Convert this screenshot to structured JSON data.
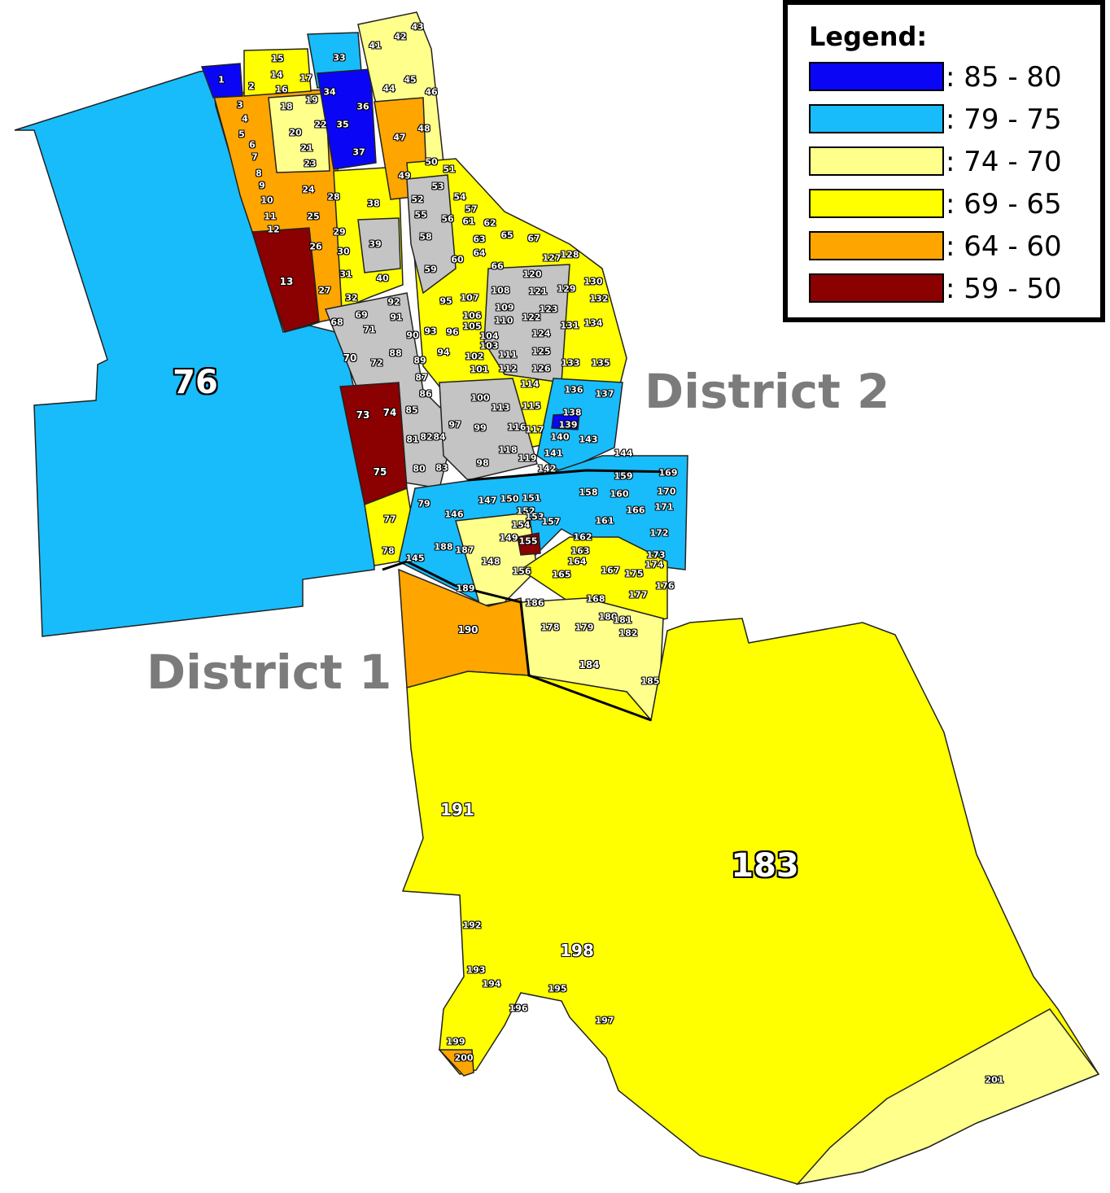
{
  "colors": {
    "c85_80": "#0a06f5",
    "c79_75": "#18bcfa",
    "c74_70": "#ffff8c",
    "c69_65": "#ffff00",
    "c64_60": "#ffa500",
    "c59_50": "#8b0000",
    "no_data": "#c4c4c4"
  },
  "legend": {
    "title": "Legend:",
    "items": [
      {
        "label": ": 85 - 80",
        "color": "#0a06f5"
      },
      {
        "label": ": 79 - 75",
        "color": "#18bcfa"
      },
      {
        "label": ": 74 - 70",
        "color": "#ffff8c"
      },
      {
        "label": ": 69 - 65",
        "color": "#ffff00"
      },
      {
        "label": ": 64 - 60",
        "color": "#ffa500"
      },
      {
        "label": ": 59 - 50",
        "color": "#8b0000"
      }
    ]
  },
  "districts": {
    "d1": "District 1",
    "d2": "District 2"
  },
  "parcels": [
    "1",
    "2",
    "3",
    "4",
    "5",
    "6",
    "7",
    "8",
    "9",
    "10",
    "11",
    "12",
    "13",
    "14",
    "15",
    "16",
    "17",
    "18",
    "19",
    "20",
    "21",
    "22",
    "23",
    "24",
    "25",
    "26",
    "27",
    "28",
    "29",
    "30",
    "31",
    "32",
    "33",
    "34",
    "35",
    "36",
    "37",
    "38",
    "39",
    "40",
    "41",
    "42",
    "43",
    "44",
    "45",
    "46",
    "47",
    "48",
    "49",
    "50",
    "51",
    "52",
    "53",
    "54",
    "55",
    "56",
    "57",
    "58",
    "59",
    "60",
    "61",
    "62",
    "63",
    "64",
    "65",
    "66",
    "67",
    "68",
    "69",
    "70",
    "71",
    "72",
    "73",
    "74",
    "75",
    "76",
    "77",
    "78",
    "79",
    "80",
    "81",
    "82",
    "83",
    "84",
    "85",
    "86",
    "87",
    "88",
    "89",
    "90",
    "91",
    "92",
    "93",
    "94",
    "95",
    "96",
    "97",
    "98",
    "99",
    "100",
    "101",
    "102",
    "103",
    "104",
    "105",
    "106",
    "107",
    "108",
    "109",
    "110",
    "111",
    "112",
    "113",
    "114",
    "115",
    "116",
    "117",
    "118",
    "119",
    "120",
    "121",
    "122",
    "123",
    "124",
    "125",
    "126",
    "127",
    "128",
    "129",
    "130",
    "131",
    "132",
    "133",
    "134",
    "135",
    "136",
    "137",
    "138",
    "139",
    "140",
    "141",
    "142",
    "143",
    "144",
    "145",
    "146",
    "147",
    "148",
    "149",
    "150",
    "151",
    "152",
    "153",
    "154",
    "155",
    "156",
    "157",
    "158",
    "159",
    "160",
    "161",
    "162",
    "163",
    "164",
    "165",
    "166",
    "167",
    "168",
    "169",
    "170",
    "171",
    "172",
    "173",
    "174",
    "175",
    "176",
    "177",
    "178",
    "179",
    "180",
    "181",
    "182",
    "183",
    "184",
    "185",
    "186",
    "187",
    "188",
    "189",
    "190",
    "191",
    "192",
    "193",
    "194",
    "195",
    "196",
    "197",
    "198",
    "199",
    "200",
    "201"
  ]
}
